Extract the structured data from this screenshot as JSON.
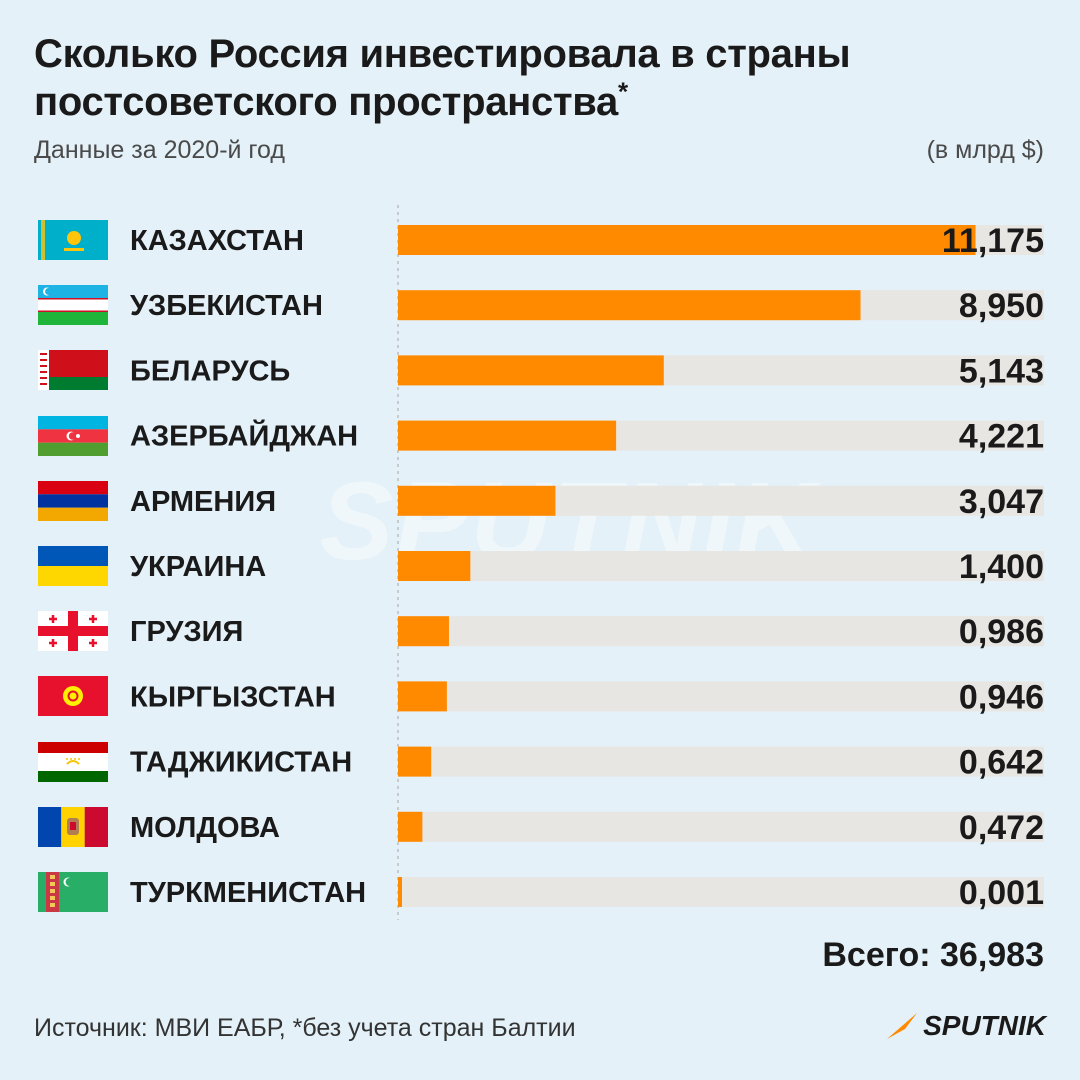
{
  "header": {
    "title_line1": "Сколько Россия инвестировала в страны",
    "title_line2": "постсоветского пространства",
    "title_star": "*",
    "subtitle": "Данные за 2020-й год",
    "unit": "(в млрд $)"
  },
  "watermark": "SPUTNIK",
  "colors": {
    "bar": "#ff8a00",
    "track": "#e8e6e2",
    "background": "#e4f1f8",
    "axis": "#bdbdbd"
  },
  "chart_data": {
    "type": "bar",
    "orientation": "horizontal",
    "categories": [
      "КАЗАХСТАН",
      "УЗБЕКИСТАН",
      "БЕЛАРУСЬ",
      "АЗЕРБАЙДЖАН",
      "АРМЕНИЯ",
      "УКРАИНА",
      "ГРУЗИЯ",
      "КЫРГЫЗСТАН",
      "ТАДЖИКИСТАН",
      "МОЛДОВА",
      "ТУРКМЕНИСТАН"
    ],
    "values": [
      11.175,
      8.95,
      5.143,
      4.221,
      3.047,
      1.4,
      0.986,
      0.946,
      0.642,
      0.472,
      0.001
    ],
    "value_labels": [
      "11,175",
      "8,950",
      "5,143",
      "4,221",
      "3,047",
      "1,400",
      "0,986",
      "0,946",
      "0,642",
      "0,472",
      "0,001"
    ],
    "flag_icons": [
      "flag-kazakhstan-icon",
      "flag-uzbekistan-icon",
      "flag-belarus-icon",
      "flag-azerbaijan-icon",
      "flag-armenia-icon",
      "flag-ukraine-icon",
      "flag-georgia-icon",
      "flag-kyrgyzstan-icon",
      "flag-tajikistan-icon",
      "flag-moldova-icon",
      "flag-turkmenistan-icon"
    ],
    "xlim": [
      0,
      12.5
    ],
    "total_label": "Всего: 36,983"
  },
  "footer": {
    "source": "Источник: МВИ ЕАБР, *без учета стран Балтии",
    "logo_text": "SPUTNIK"
  }
}
